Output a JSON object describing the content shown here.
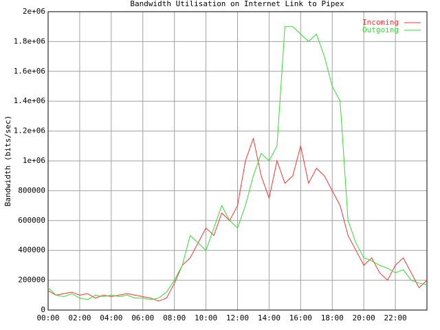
{
  "chart_data": {
    "type": "line",
    "title": "Bandwidth Utilisation on Internet Link to Pipex",
    "y_label": "Bandwidth (bits/sec)",
    "x": [
      0,
      0.5,
      1,
      1.5,
      2,
      2.5,
      3,
      3.5,
      4,
      4.5,
      5,
      5.5,
      6,
      6.5,
      7,
      7.5,
      8,
      8.5,
      9,
      9.5,
      10,
      10.5,
      11,
      11.5,
      12,
      12.5,
      13,
      13.5,
      14,
      14.5,
      15,
      15.5,
      16,
      16.5,
      17,
      17.5,
      18,
      18.5,
      19,
      19.5,
      20,
      20.5,
      21,
      21.5,
      22,
      22.5,
      23,
      23.5,
      24
    ],
    "series": [
      {
        "name": "Incoming",
        "color": "#ff3030",
        "values": [
          130000,
          100000,
          110000,
          120000,
          100000,
          110000,
          80000,
          100000,
          90000,
          100000,
          110000,
          100000,
          90000,
          80000,
          60000,
          80000,
          180000,
          300000,
          350000,
          450000,
          550000,
          500000,
          650000,
          600000,
          700000,
          1000000,
          1150000,
          900000,
          750000,
          1000000,
          850000,
          900000,
          1100000,
          850000,
          950000,
          900000,
          800000,
          700000,
          500000,
          400000,
          300000,
          350000,
          250000,
          200000,
          300000,
          350000,
          250000,
          150000,
          200000
        ]
      },
      {
        "name": "Outgoing",
        "color": "#30e030",
        "values": [
          150000,
          100000,
          90000,
          110000,
          80000,
          70000,
          100000,
          90000,
          100000,
          90000,
          100000,
          80000,
          80000,
          70000,
          80000,
          120000,
          200000,
          300000,
          500000,
          450000,
          400000,
          550000,
          700000,
          600000,
          550000,
          700000,
          900000,
          1050000,
          1000000,
          1100000,
          1900000,
          1900000,
          1850000,
          1800000,
          1850000,
          1700000,
          1500000,
          1400000,
          600000,
          450000,
          350000,
          330000,
          300000,
          280000,
          250000,
          270000,
          200000,
          180000,
          170000
        ]
      }
    ],
    "xlim": [
      0,
      24
    ],
    "xticks": [
      {
        "value": 0,
        "label": "00:00"
      },
      {
        "value": 2,
        "label": "02:00"
      },
      {
        "value": 4,
        "label": "04:00"
      },
      {
        "value": 6,
        "label": "06:00"
      },
      {
        "value": 8,
        "label": "08:00"
      },
      {
        "value": 10,
        "label": "10:00"
      },
      {
        "value": 12,
        "label": "12:00"
      },
      {
        "value": 14,
        "label": "14:00"
      },
      {
        "value": 16,
        "label": "16:00"
      },
      {
        "value": 18,
        "label": "18:00"
      },
      {
        "value": 20,
        "label": "20:00"
      },
      {
        "value": 22,
        "label": "22:00"
      }
    ],
    "ylim": [
      0,
      2000000
    ],
    "yticks": [
      0,
      200000,
      400000,
      600000,
      800000,
      {
        "value": 1000000,
        "label": "1e+06"
      },
      {
        "value": 1200000,
        "label": "1.2e+06"
      },
      {
        "value": 1400000,
        "label": "1.4e+06"
      },
      {
        "value": 1600000,
        "label": "1.6e+06"
      },
      {
        "value": 1800000,
        "label": "1.8e+06"
      },
      {
        "value": 2000000,
        "label": "2e+06"
      }
    ],
    "grid": true,
    "legend": "top-right"
  }
}
